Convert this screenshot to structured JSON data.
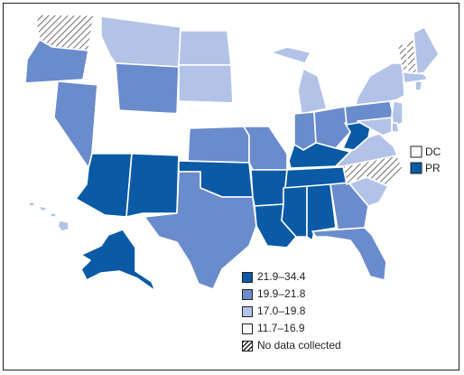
{
  "colors": {
    "c1": "#0a5aa6",
    "c2": "#6a8ccc",
    "c3": "#b3c3e8",
    "c4": "#ffffff",
    "nodata_stroke": "#231f20"
  },
  "legend": {
    "items": [
      {
        "label": "21.9–34.4",
        "color_key": "c1"
      },
      {
        "label": "19.9–21.8",
        "color_key": "c2"
      },
      {
        "label": "17.0–19.8",
        "color_key": "c3"
      },
      {
        "label": "11.7–16.9",
        "color_key": "c4"
      },
      {
        "label": "No data collected",
        "color_key": "nodata"
      }
    ]
  },
  "territories": [
    {
      "label": "DC",
      "category": "c4"
    },
    {
      "label": "PR",
      "category": "c1"
    }
  ],
  "states": {
    "WA": "nodata",
    "OR": "c2",
    "CA": "c4",
    "NV": "c2",
    "ID": "c4",
    "MT": "c3",
    "WY": "c2",
    "UT": "c4",
    "CO": "c4",
    "AZ": "c1",
    "NM": "c1",
    "ND": "c3",
    "SD": "c3",
    "NE": "c4",
    "KS": "c2",
    "OK": "c1",
    "TX": "c2",
    "MN": "c4",
    "IA": "c4",
    "MO": "c2",
    "AR": "c1",
    "LA": "c1",
    "WI": "c4",
    "IL": "c4",
    "MI": "c3",
    "IN": "c2",
    "OH": "c2",
    "KY": "c1",
    "TN": "c1",
    "MS": "c1",
    "AL": "c1",
    "GA": "c2",
    "FL": "c2",
    "SC": "c3",
    "NC": "nodata",
    "VA": "c3",
    "WV": "c1",
    "PA": "c2",
    "NY": "c3",
    "VT": "nodata",
    "NH": "nodata",
    "ME": "c3",
    "MA": "c3",
    "CT": "c4",
    "RI": "c3",
    "NJ": "c3",
    "DE": "c3",
    "MD": "c3",
    "AK": "c1",
    "HI": "c3"
  }
}
